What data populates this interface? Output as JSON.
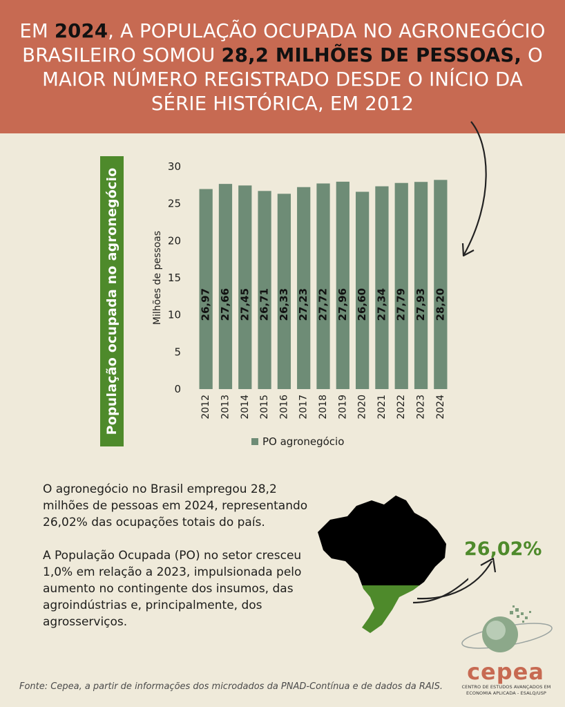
{
  "header": {
    "parts": [
      {
        "text": "EM ",
        "highlight": false
      },
      {
        "text": "2024",
        "highlight": true
      },
      {
        "text": ", A POPULAÇÃO OCUPADA NO AGRONEGÓCIO BRASILEIRO SOMOU ",
        "highlight": false
      },
      {
        "text": "28,2 MILHÕES DE PESSOAS,",
        "highlight": true
      },
      {
        "text": " O MAIOR NÚMERO REGISTRADO DESDE O INÍCIO DA SÉRIE HISTÓRICA, EM 2012",
        "highlight": false
      }
    ]
  },
  "side_label": "População ocupada no agronegócio",
  "chart_data": {
    "type": "bar",
    "categories": [
      "2012",
      "2013",
      "2014",
      "2015",
      "2016",
      "2017",
      "2018",
      "2019",
      "2020",
      "2021",
      "2022",
      "2023",
      "2024"
    ],
    "series": [
      {
        "name": "PO agronegócio",
        "values": [
          26.97,
          27.66,
          27.45,
          26.71,
          26.33,
          27.23,
          27.72,
          27.96,
          26.6,
          27.34,
          27.79,
          27.93,
          28.2
        ],
        "data_labels": [
          "26,97",
          "27,66",
          "27,45",
          "26,71",
          "26,33",
          "27,23",
          "27,72",
          "27,96",
          "26,60",
          "27,34",
          "27,79",
          "27,93",
          "28,20"
        ]
      }
    ],
    "ylabel": "Milhões de pessoas",
    "xlabel": "",
    "ylim": [
      0,
      30
    ],
    "yticks": [
      0,
      5,
      10,
      15,
      20,
      25,
      30
    ],
    "legend_position": "bottom",
    "grid": false,
    "colors": {
      "bar": "#6e8c76"
    }
  },
  "body": {
    "paragraph1": "O agronegócio no Brasil empregou 28,2 milhões de pessoas em 2024, representando 26,02% das ocupações totais do país.",
    "paragraph2": "A População Ocupada (PO) no setor cresceu 1,0% em relação a 2023, impulsionada pelo aumento no contingente dos insumos, das agroindústrias e, principalmente, dos agrosserviços."
  },
  "map": {
    "share_label": "26,02%",
    "icon": "brazil-map-icon"
  },
  "source": "Fonte: Cepea, a partir de informações dos microdados da PNAD-Contínua e de dados da RAIS.",
  "logo": {
    "name": "cepea",
    "subtitle_line1": "CENTRO DE ESTUDOS AVANÇADOS EM",
    "subtitle_line2": "ECONOMIA APLICADA - ESALQ/USP"
  },
  "colors": {
    "header_bg": "#c76a52",
    "page_bg": "#efeada",
    "accent_green": "#4e8a2b",
    "bar": "#6e8c76"
  }
}
